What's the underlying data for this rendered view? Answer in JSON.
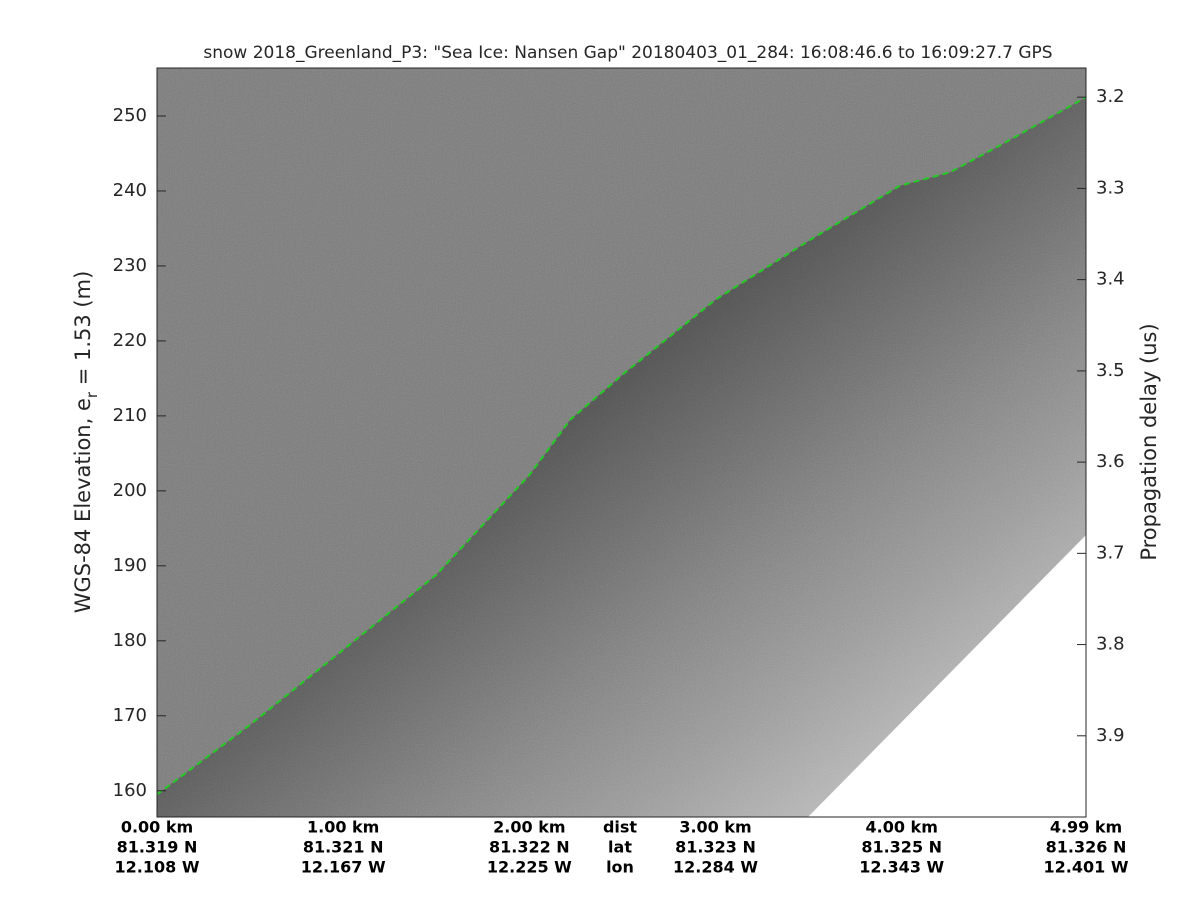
{
  "chart_data": {
    "type": "line",
    "title": "snow 2018_Greenland_P3: \"Sea Ice: Nansen Gap\"  20180403_01_284: 16:08:46.6 to 16:09:27.7 GPS",
    "ylabel": {
      "text": "WGS-84 Elevation, e",
      "subscript": "r",
      "rest": " = 1.53 (m)"
    },
    "y2label": "Propagation delay (us)",
    "xlim": [
      0,
      4.99
    ],
    "xticks": [
      {
        "value": 0,
        "label": "0.00 km"
      },
      {
        "value": 1,
        "label": "1.00 km"
      },
      {
        "value": 2,
        "label": "2.00 km"
      },
      {
        "value": 3,
        "label": "3.00 km"
      },
      {
        "value": 4,
        "label": "4.00 km"
      },
      {
        "value": 4.99,
        "label": "4.99 km"
      }
    ],
    "xtick_lat": [
      "81.319 N",
      "81.321 N",
      "81.322 N",
      "81.323 N",
      "81.325 N",
      "81.326 N"
    ],
    "xtick_lon": [
      "12.108 W",
      "12.167 W",
      "12.225 W",
      "12.284 W",
      "12.343 W",
      "12.401 W"
    ],
    "row_labels": [
      "dist",
      "lat",
      "lon"
    ],
    "ylim": [
      156.5,
      256.4
    ],
    "yticks": [
      160,
      170,
      180,
      190,
      200,
      210,
      220,
      230,
      240,
      250
    ],
    "y2lim": [
      3.989,
      3.168
    ],
    "y2ticks": [
      3.2,
      3.3,
      3.4,
      3.5,
      3.6,
      3.7,
      3.8,
      3.9
    ],
    "x": [
      0,
      0.5,
      1.0,
      1.5,
      2.0,
      2.22,
      2.51,
      3.0,
      3.51,
      3.99,
      4.26,
      4.53,
      4.99
    ],
    "series": [
      {
        "color": "#22cc22",
        "values": [
          159.5,
          168.8,
          178.8,
          188.8,
          202.1,
          209.5,
          215.7,
          225.5,
          233.5,
          240.7,
          242.5,
          246.1,
          252.5
        ]
      }
    ]
  }
}
